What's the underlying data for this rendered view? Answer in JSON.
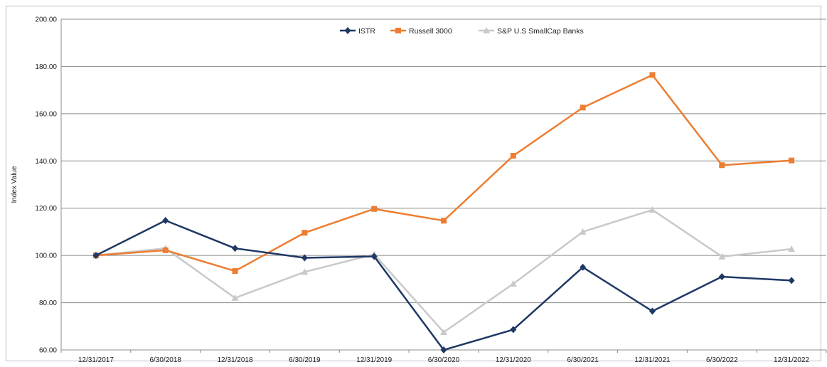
{
  "chart_data": {
    "type": "line",
    "title": "",
    "xlabel": "",
    "ylabel": "Index Value",
    "ylim": [
      60,
      200
    ],
    "yticks": [
      "60.00",
      "80.00",
      "100.00",
      "120.00",
      "140.00",
      "160.00",
      "180.00",
      "200.00"
    ],
    "grid": "horizontal",
    "legend_position": "top-center",
    "categories": [
      "12/31/2017",
      "6/30/2018",
      "12/31/2018",
      "6/30/2019",
      "12/31/2019",
      "6/30/2020",
      "12/31/2020",
      "6/30/2021",
      "12/31/2021",
      "6/30/2022",
      "12/31/2022"
    ],
    "series": [
      {
        "name": "ISTR",
        "color": "#1f3864",
        "marker": "diamond",
        "values": [
          100.0,
          114.8,
          103.0,
          99.0,
          99.6,
          60.0,
          68.6,
          95.0,
          76.4,
          91.0,
          89.4
        ]
      },
      {
        "name": "Russell 3000",
        "color": "#ed7d31",
        "marker": "square",
        "values": [
          100.0,
          102.2,
          93.4,
          109.6,
          119.7,
          114.7,
          142.2,
          162.6,
          176.4,
          138.2,
          140.2
        ]
      },
      {
        "name": "S&P U.S SmallCap Banks",
        "color": "#c9c9c9",
        "marker": "triangle",
        "values": [
          100.0,
          103.0,
          82.0,
          93.0,
          100.5,
          67.5,
          88.0,
          110.0,
          119.3,
          99.5,
          102.7
        ]
      }
    ]
  }
}
